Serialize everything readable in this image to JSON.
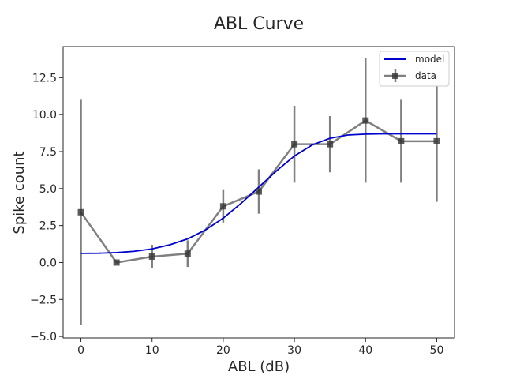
{
  "chart_data": {
    "type": "line",
    "title": "ABL Curve",
    "xlabel": "ABL (dB)",
    "ylabel": "Spike count",
    "xlim": [
      -2.5,
      52.5
    ],
    "ylim": [
      -5.1,
      14.6
    ],
    "xticks": [
      0,
      10,
      20,
      30,
      40,
      50
    ],
    "yticks": [
      -5.0,
      -2.5,
      0.0,
      2.5,
      5.0,
      7.5,
      10.0,
      12.5
    ],
    "xtick_labels": [
      "0",
      "10",
      "20",
      "30",
      "40",
      "50"
    ],
    "ytick_labels": [
      "−5.0",
      "−2.5",
      "0.0",
      "2.5",
      "5.0",
      "7.5",
      "10.0",
      "12.5"
    ],
    "grid": false,
    "legend_position": "top-right",
    "series": [
      {
        "name": "model",
        "kind": "line",
        "color": "#0000cc",
        "x": [
          0,
          2.5,
          5,
          7.5,
          10,
          12.5,
          15,
          17.5,
          20,
          22.5,
          25,
          27.5,
          30,
          32.5,
          35,
          37.5,
          40,
          42.5,
          45,
          47.5,
          50
        ],
        "y": [
          0.62,
          0.63,
          0.67,
          0.76,
          0.92,
          1.2,
          1.6,
          2.2,
          3.0,
          4.0,
          5.1,
          6.2,
          7.2,
          7.95,
          8.4,
          8.62,
          8.68,
          8.7,
          8.7,
          8.7,
          8.7
        ]
      },
      {
        "name": "data",
        "kind": "errorbar",
        "color": "#555555",
        "x": [
          0,
          5,
          10,
          15,
          20,
          25,
          30,
          35,
          40,
          45,
          50
        ],
        "y": [
          3.4,
          0.0,
          0.4,
          0.6,
          3.8,
          4.8,
          8.0,
          8.0,
          9.6,
          8.2,
          8.2
        ],
        "yerr": [
          7.6,
          0.0,
          0.8,
          0.9,
          1.1,
          1.5,
          2.6,
          1.9,
          4.2,
          2.8,
          4.1
        ]
      }
    ]
  }
}
